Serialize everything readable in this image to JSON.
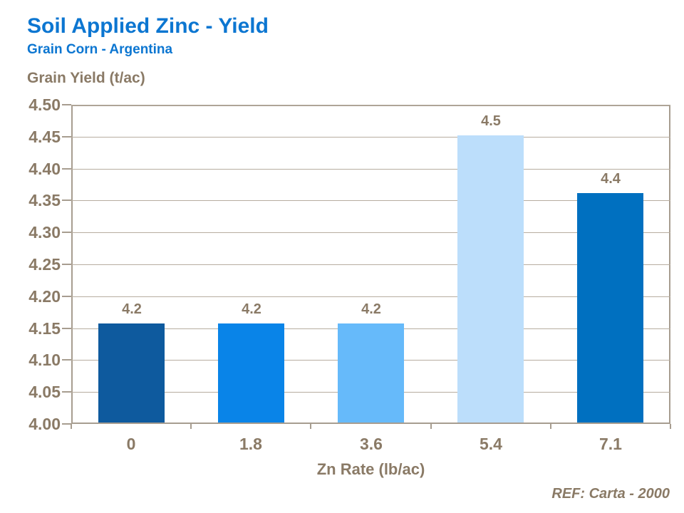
{
  "header": {
    "title": "Soil Applied Zinc - Yield",
    "subtitle": "Grain Corn - Argentina"
  },
  "footer": {
    "ref": "REF: Carta - 2000"
  },
  "colors": {
    "title_blue": "#0C76D1",
    "text_brown": "#8A7A66",
    "axis_line": "#A79D90",
    "gridline": "#B7ADA0",
    "background": "#FFFFFF"
  },
  "chart_data": {
    "type": "bar",
    "title": "Soil Applied Zinc - Yield",
    "subtitle": "Grain Corn - Argentina",
    "ylabel": "Grain Yield (t/ac)",
    "xlabel": "Zn Rate (lb/ac)",
    "categories": [
      "0",
      "1.8",
      "3.6",
      "5.4",
      "7.1"
    ],
    "values": [
      4.2,
      4.2,
      4.2,
      4.5,
      4.4
    ],
    "plotted_values": [
      4.157,
      4.157,
      4.157,
      4.452,
      4.362
    ],
    "data_labels": [
      "4.2",
      "4.2",
      "4.2",
      "4.5",
      "4.4"
    ],
    "bar_colors": [
      "#0E5A9E",
      "#0984E8",
      "#66BAFA",
      "#BCDEFB",
      "#0070C0"
    ],
    "ylim": [
      4.0,
      4.5
    ],
    "ytick_step": 0.05,
    "ytick_labels": [
      "4.00",
      "4.05",
      "4.10",
      "4.15",
      "4.20",
      "4.25",
      "4.30",
      "4.35",
      "4.40",
      "4.45",
      "4.50"
    ],
    "grid": true,
    "legend": false
  }
}
